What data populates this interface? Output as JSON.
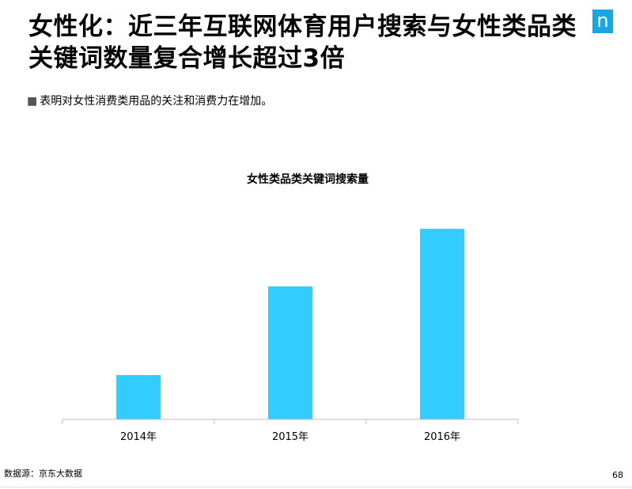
{
  "slide": {
    "title": "女性化：近三年互联网体育用户搜索与女性类品类关键词数量复合增长超过3倍",
    "logo_letter": "n",
    "bullet_marker": "■",
    "bullet": "表明对女性消费类用品的关注和消费力在增加。",
    "source": "数据源：京东大数据",
    "page_number": "68"
  },
  "colors": {
    "bar": "#33CCFF",
    "logo": "#1BA5E3",
    "axis": "#BFBFBF"
  },
  "chart_data": {
    "type": "bar",
    "title": "女性类品类关键词搜索量",
    "categories": [
      "2014年",
      "2015年",
      "2016年"
    ],
    "values": [
      1.0,
      3.0,
      4.3
    ],
    "ylim": [
      0,
      5
    ],
    "xlabel": "",
    "ylabel": "",
    "grid": false,
    "y_axis_visible": false
  }
}
